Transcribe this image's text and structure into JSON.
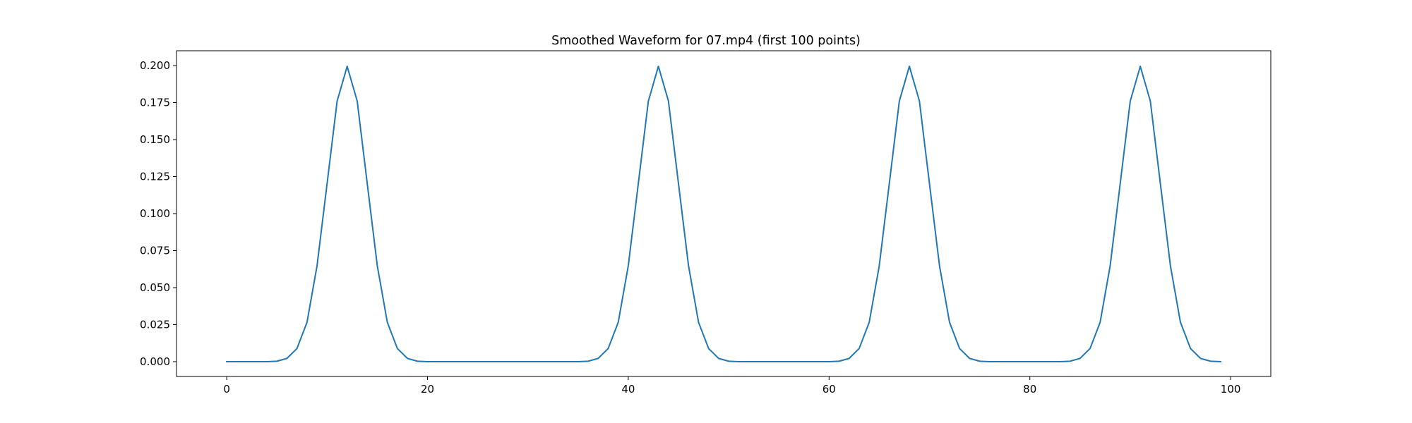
{
  "chart_data": {
    "type": "line",
    "title": "Smoothed Waveform for 07.mp4 (first 100 points)",
    "xlabel": "",
    "ylabel": "",
    "xlim": [
      -5,
      104
    ],
    "ylim": [
      -0.01,
      0.21
    ],
    "xticks": [
      0,
      20,
      40,
      60,
      80,
      100
    ],
    "xtick_labels": [
      "0",
      "20",
      "40",
      "60",
      "80",
      "100"
    ],
    "yticks": [
      0.0,
      0.025,
      0.05,
      0.075,
      0.1,
      0.125,
      0.15,
      0.175,
      0.2
    ],
    "ytick_labels": [
      "0.000",
      "0.025",
      "0.050",
      "0.075",
      "0.100",
      "0.125",
      "0.150",
      "0.175",
      "0.200"
    ],
    "grid": false,
    "series": [
      {
        "color": "#1f77b4",
        "x": [
          0,
          1,
          2,
          3,
          4,
          5,
          6,
          7,
          8,
          9,
          10,
          11,
          12,
          13,
          14,
          15,
          16,
          17,
          18,
          19,
          20,
          21,
          22,
          23,
          24,
          25,
          26,
          27,
          28,
          29,
          30,
          31,
          32,
          33,
          34,
          35,
          36,
          37,
          38,
          39,
          40,
          41,
          42,
          43,
          44,
          45,
          46,
          47,
          48,
          49,
          50,
          51,
          52,
          53,
          54,
          55,
          56,
          57,
          58,
          59,
          60,
          61,
          62,
          63,
          64,
          65,
          66,
          67,
          68,
          69,
          70,
          71,
          72,
          73,
          74,
          75,
          76,
          77,
          78,
          79,
          80,
          81,
          82,
          83,
          84,
          85,
          86,
          87,
          88,
          89,
          90,
          91,
          92,
          93,
          94,
          95,
          96,
          97,
          98,
          99
        ],
        "y": [
          0,
          0,
          0,
          0,
          0,
          0.0003,
          0.0022,
          0.0089,
          0.0266,
          0.0648,
          0.1203,
          0.176,
          0.1995,
          0.176,
          0.1203,
          0.0648,
          0.0266,
          0.0089,
          0.0022,
          0.0003,
          0,
          0,
          0,
          0,
          0,
          0,
          0,
          0,
          0,
          0,
          0,
          0,
          0,
          0,
          0,
          0,
          0.0003,
          0.0022,
          0.0089,
          0.0266,
          0.0648,
          0.1203,
          0.176,
          0.1995,
          0.176,
          0.1203,
          0.0648,
          0.0266,
          0.0089,
          0.0022,
          0.0003,
          0,
          0,
          0,
          0,
          0,
          0,
          0,
          0,
          0,
          0,
          0.0003,
          0.0022,
          0.0089,
          0.0266,
          0.0648,
          0.1203,
          0.176,
          0.1995,
          0.176,
          0.1203,
          0.0648,
          0.0266,
          0.0089,
          0.0022,
          0.0003,
          0,
          0,
          0,
          0,
          0,
          0,
          0,
          0,
          0.0003,
          0.0022,
          0.0089,
          0.0266,
          0.0648,
          0.1203,
          0.176,
          0.1995,
          0.176,
          0.1203,
          0.0648,
          0.0266,
          0.0089,
          0.0022,
          0.0003,
          0
        ]
      }
    ]
  }
}
